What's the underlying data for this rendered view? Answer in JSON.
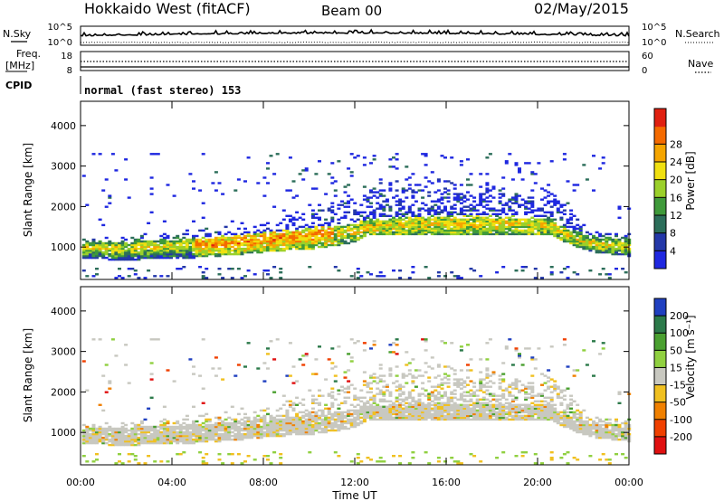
{
  "header": {
    "radar": "Hokkaido West (fitACF)",
    "beam": "Beam 00",
    "date": "02/May/2015"
  },
  "top_panels": {
    "nsky_label": "N.Sky",
    "nsearch_label": "N.Search",
    "noise_ticks": [
      "10^5",
      "10^0"
    ],
    "freq_label_1": "Freq.",
    "freq_label_2": "[MHz]",
    "freq_ticks": [
      "18",
      "8"
    ],
    "nave_label": "Nave",
    "nave_ticks": [
      "60",
      "0"
    ],
    "cpid_label": "CPID",
    "cpid_value": "normal (fast stereo) 153"
  },
  "chart_data": [
    {
      "type": "heatmap",
      "name": "power",
      "ylabel": "Slant Range [km]",
      "ylim": [
        200,
        4600
      ],
      "yticks": [
        1000,
        2000,
        3000,
        4000
      ],
      "xlim": [
        0,
        24
      ],
      "colorbar_label": "Power [dB]",
      "colorbar_ticks": [
        "4",
        "8",
        "12",
        "16",
        "20",
        "24",
        "28"
      ],
      "colors": [
        "#1f28e0",
        "#2438a8",
        "#2c6e5a",
        "#3f9a3a",
        "#9bd02a",
        "#f0e010",
        "#f5a500",
        "#f46a00",
        "#e02010"
      ],
      "profile_hours": [
        0,
        2,
        3.5,
        5.5,
        7,
        9,
        10.5,
        12,
        12.5,
        13,
        15,
        17,
        19,
        20.5,
        21.5,
        22.5,
        24
      ],
      "profile_low_km": [
        700,
        650,
        700,
        720,
        800,
        900,
        950,
        1100,
        1280,
        1300,
        1300,
        1300,
        1300,
        1300,
        1000,
        850,
        750
      ],
      "profile_core_km": [
        950,
        950,
        1000,
        1050,
        1100,
        1200,
        1300,
        1400,
        1450,
        1500,
        1550,
        1550,
        1550,
        1500,
        1200,
        1050,
        1000
      ],
      "profile_high_km": [
        1250,
        1250,
        1300,
        1450,
        1600,
        1800,
        2000,
        2200,
        2400,
        2600,
        2700,
        2600,
        2500,
        2400,
        1900,
        1400,
        1350
      ]
    },
    {
      "type": "heatmap",
      "name": "velocity",
      "ylabel": "Slant Range [km]",
      "ylim": [
        200,
        4600
      ],
      "yticks": [
        1000,
        2000,
        3000,
        4000
      ],
      "xlim": [
        0,
        24
      ],
      "colorbar_label": "Velocity [m s⁻¹]",
      "colorbar_ticks": [
        "200",
        "100",
        "50",
        "15",
        "-15",
        "-50",
        "-100",
        "-200"
      ],
      "colors": [
        "#2040c0",
        "#2c7a4a",
        "#4aa030",
        "#90d040",
        "#c8c8c0",
        "#f0c020",
        "#f08000",
        "#f04000",
        "#e01010"
      ]
    }
  ],
  "x_axis": {
    "ticks": [
      "00:00",
      "04:00",
      "08:00",
      "12:00",
      "16:00",
      "20:00",
      "00:00"
    ],
    "label": "Time UT"
  }
}
